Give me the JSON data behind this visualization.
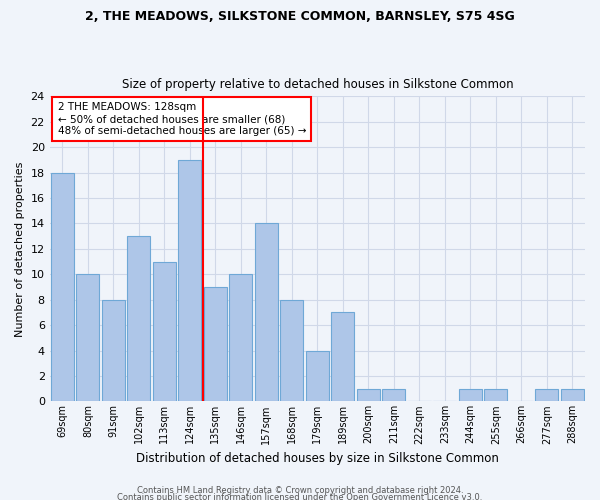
{
  "title1": "2, THE MEADOWS, SILKSTONE COMMON, BARNSLEY, S75 4SG",
  "title2": "Size of property relative to detached houses in Silkstone Common",
  "xlabel": "Distribution of detached houses by size in Silkstone Common",
  "ylabel": "Number of detached properties",
  "categories": [
    "69sqm",
    "80sqm",
    "91sqm",
    "102sqm",
    "113sqm",
    "124sqm",
    "135sqm",
    "146sqm",
    "157sqm",
    "168sqm",
    "179sqm",
    "189sqm",
    "200sqm",
    "211sqm",
    "222sqm",
    "233sqm",
    "244sqm",
    "255sqm",
    "266sqm",
    "277sqm",
    "288sqm"
  ],
  "values": [
    18,
    10,
    8,
    13,
    11,
    19,
    9,
    10,
    14,
    8,
    4,
    7,
    1,
    1,
    0,
    0,
    1,
    1,
    0,
    1,
    1
  ],
  "bar_color": "#aec6e8",
  "bar_edge_color": "#6fa8d6",
  "annotation_text": "2 THE MEADOWS: 128sqm\n← 50% of detached houses are smaller (68)\n48% of semi-detached houses are larger (65) →",
  "annotation_box_color": "white",
  "annotation_box_edge": "red",
  "vline_color": "red",
  "vline_x": 5.5,
  "ylim": [
    0,
    24
  ],
  "yticks": [
    0,
    2,
    4,
    6,
    8,
    10,
    12,
    14,
    16,
    18,
    20,
    22,
    24
  ],
  "footer1": "Contains HM Land Registry data © Crown copyright and database right 2024.",
  "footer2": "Contains public sector information licensed under the Open Government Licence v3.0.",
  "bg_color": "#f0f4fa",
  "grid_color": "#d0d8e8"
}
